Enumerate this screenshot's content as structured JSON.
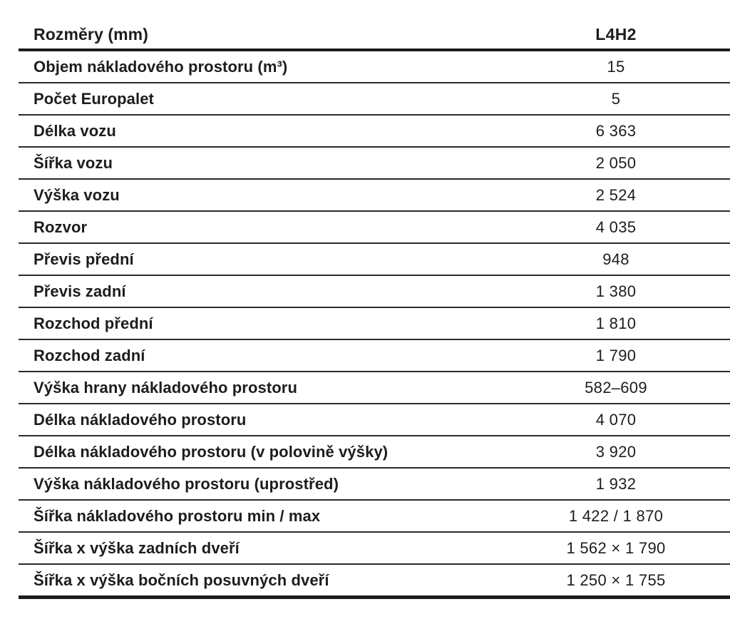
{
  "table": {
    "header": {
      "label": "Rozměry (mm)",
      "value": "L4H2"
    },
    "rows": [
      {
        "label": "Objem nákladového prostoru (m³)",
        "value": "15"
      },
      {
        "label": "Počet Europalet",
        "value": "5"
      },
      {
        "label": "Délka vozu",
        "value": "6 363"
      },
      {
        "label": "Šířka vozu",
        "value": "2 050"
      },
      {
        "label": "Výška vozu",
        "value": "2 524"
      },
      {
        "label": "Rozvor",
        "value": "4 035"
      },
      {
        "label": "Převis přední",
        "value": "948"
      },
      {
        "label": "Převis zadní",
        "value": "1 380"
      },
      {
        "label": "Rozchod přední",
        "value": "1 810"
      },
      {
        "label": "Rozchod zadní",
        "value": "1 790"
      },
      {
        "label": "Výška hrany nákladového prostoru",
        "value": "582–609"
      },
      {
        "label": "Délka nákladového prostoru",
        "value": "4 070"
      },
      {
        "label": "Délka nákladového prostoru (v polovině výšky)",
        "value": "3 920"
      },
      {
        "label": "Výška nákladového prostoru (uprostřed)",
        "value": "1 932"
      },
      {
        "label": "Šířka nákladového prostoru min / max",
        "value": "1 422 / 1 870"
      },
      {
        "label": "Šířka x výška zadních dveří",
        "value": "1 562 × 1 790"
      },
      {
        "label": "Šířka x výška bočních posuvných dveří",
        "value": "1 250 × 1 755"
      }
    ],
    "colors": {
      "text": "#1d1d1b",
      "rule": "#1d1d1b"
    }
  }
}
